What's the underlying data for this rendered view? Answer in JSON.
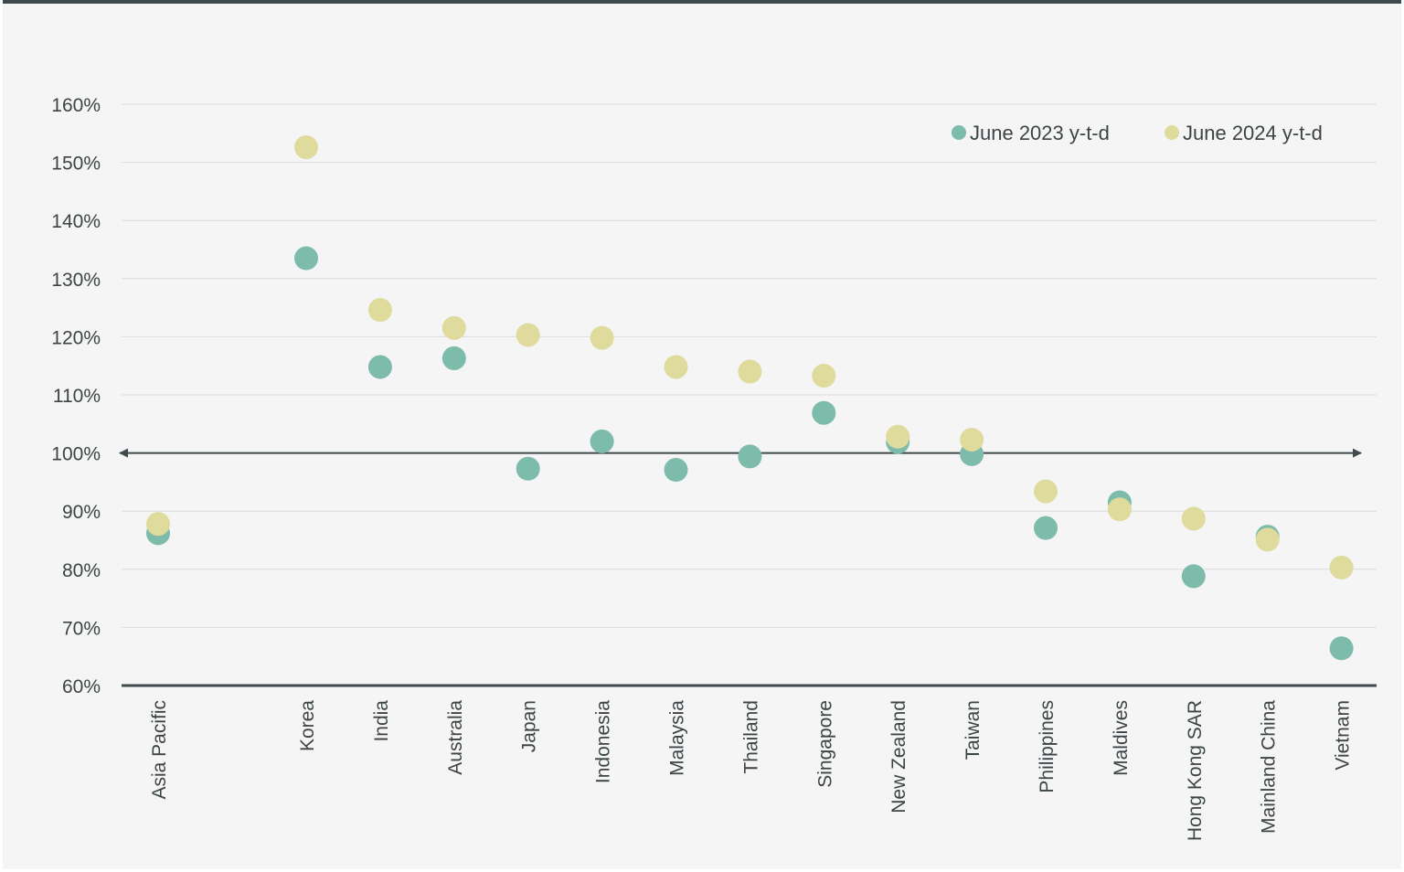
{
  "chart_data": {
    "type": "scatter",
    "categories": [
      "Asia Pacific",
      "Korea",
      "India",
      "Australia",
      "Japan",
      "Indonesia",
      "Malaysia",
      "Thailand",
      "Singapore",
      "New Zealand",
      "Taiwan",
      "Philippines",
      "Maldives",
      "Hong Kong SAR",
      "Mainland China",
      "Vietnam"
    ],
    "series": [
      {
        "name": "June 2023 y-t-d",
        "color": "#7dbbab",
        "values": [
          86.2,
          133.5,
          114.8,
          116.3,
          97.3,
          102.0,
          97.1,
          99.4,
          106.9,
          101.9,
          99.8,
          87.1,
          91.5,
          78.8,
          85.6,
          66.4
        ]
      },
      {
        "name": "June 2024 y-t-d",
        "color": "#dedb9c",
        "values": [
          87.8,
          152.6,
          124.6,
          121.5,
          120.3,
          119.8,
          114.8,
          114.0,
          113.3,
          102.8,
          102.3,
          93.4,
          90.3,
          88.7,
          85.1,
          80.3
        ]
      }
    ],
    "ylim": [
      60,
      160
    ],
    "yticks": [
      "60%",
      "70%",
      "80%",
      "90%",
      "100%",
      "110%",
      "120%",
      "130%",
      "140%",
      "150%",
      "160%"
    ],
    "reference_line": 100,
    "grid": true,
    "legend_position": "top-right"
  }
}
